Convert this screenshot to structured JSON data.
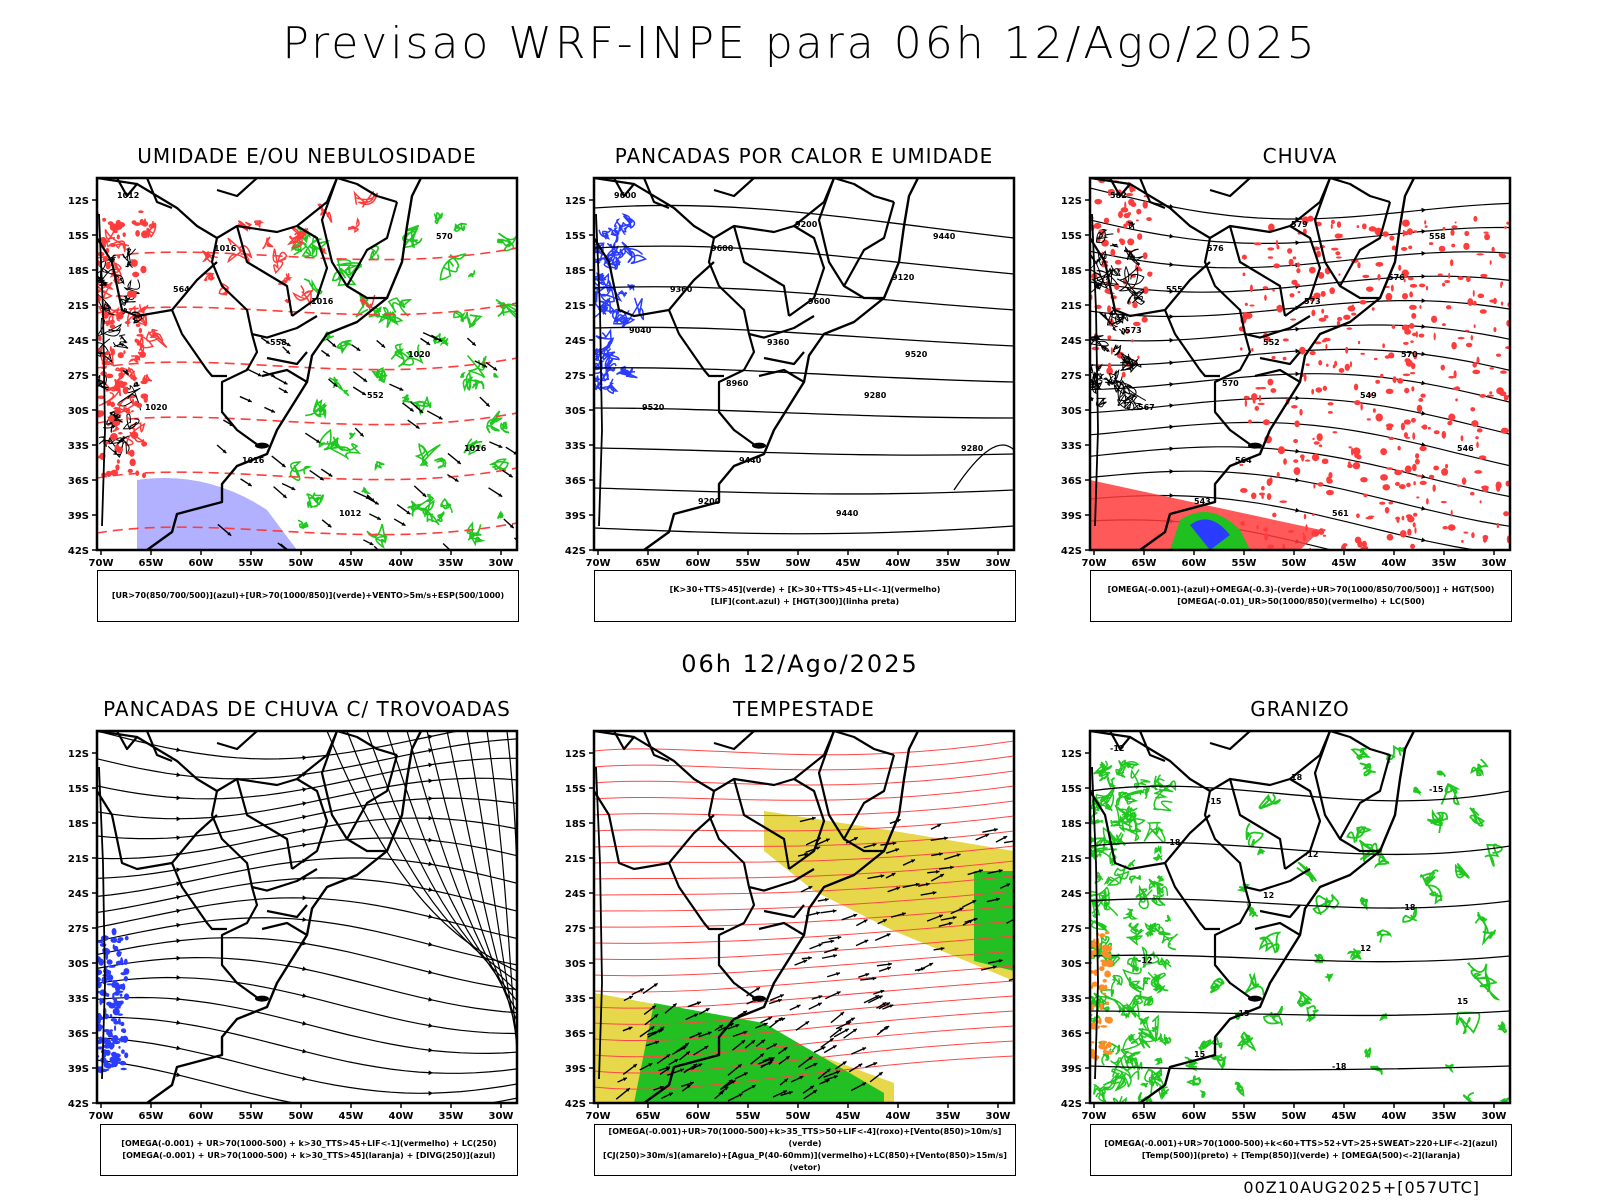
{
  "header": {
    "title": "Previsao WRF-INPE  para 06h 12/Ago/2025"
  },
  "mid_title": "06h 12/Ago/2025",
  "footer": "00Z10AUG2025+[057UTC]",
  "axes": {
    "lat_ticks": [
      "12S",
      "15S",
      "18S",
      "21S",
      "24S",
      "27S",
      "30S",
      "33S",
      "36S",
      "39S",
      "42S"
    ],
    "lon_ticks": [
      "70W",
      "65W",
      "60W",
      "55W",
      "50W",
      "45W",
      "40W",
      "35W",
      "30W"
    ]
  },
  "panels": [
    {
      "title": "UMIDADE E/OU NEBULOSIDADE",
      "legend": [
        "[UR>70(850/700/500)](azul)+[UR>70(1000/850)](verde)+VENTO>5m/s+ESP(500/1000)"
      ],
      "contour_labels": [
        "1012",
        "1016",
        "1016",
        "1020",
        "1020",
        "1016",
        "1012",
        "570",
        "564",
        "558",
        "552",
        "1016"
      ]
    },
    {
      "title": "PANCADAS POR CALOR E UMIDADE",
      "legend": [
        "[K>30+TTS>45](verde) + [K>30+TTS>45+LI<-1](vermelho)",
        "[LIF](cont.azul) + [HGT(300)](linha preta)"
      ],
      "contour_labels": [
        "9600",
        "9600",
        "9600",
        "9520",
        "9520",
        "9440",
        "9440",
        "9440",
        "9360",
        "9360",
        "9280",
        "9280",
        "9200",
        "9200",
        "9120",
        "9040",
        "8960"
      ]
    },
    {
      "title": "CHUVA",
      "legend": [
        "[OMEGA(-0.001)-(azul)+OMEGA(-0.3)-(verde)+UR>70(1000/850/700/500)] + HGT(500)",
        "[OMEGA(-0.01)_UR>50(1000/850)(vermelho) + LC(500)"
      ],
      "contour_labels": [
        "582",
        "576",
        "573",
        "570",
        "567",
        "564",
        "561",
        "558",
        "555",
        "552",
        "549",
        "546",
        "543",
        "579",
        "576",
        "573",
        "570"
      ]
    },
    {
      "title": "PANCADAS DE CHUVA C/ TROVOADAS",
      "legend": [
        "[OMEGA(-0.001) + UR>70(1000-500) + k>30_TTS>45+LIF<-1](vermelho) + LC(250)",
        "[OMEGA(-0.001) + UR>70(1000-500) + k>30_TTS>45](laranja) + [DIVG(250)](azul)"
      ],
      "contour_labels": []
    },
    {
      "title": "TEMPESTADE",
      "legend": [
        "[OMEGA(-0.001)+UR>70(1000-500)+k>35_TTS>50+LIF<-4](roxo)+[Vento(850)>10m/s](verde)",
        "[CJ(250)>30m/s](amarelo)+[Agua_P(40-60mm)](vermelho)+LC(850)+[Vento(850)>15m/s](vetor)"
      ],
      "contour_labels": []
    },
    {
      "title": "GRANIZO",
      "legend": [
        "[OMEGA(-0.001)+UR>70(1000-500)+k<60+TTS>52+VT>25+SWEAT>220+LIF<-2](azul)",
        "[Temp(500)](preto) + [Temp(850)](verde) + [OMEGA(500)<-2](laranja)"
      ],
      "contour_labels": [
        "-12",
        "-15",
        "-12",
        "-18",
        "-12",
        "-15",
        "-18",
        "-15",
        "-18",
        "12",
        "12",
        "15",
        "15",
        "18"
      ]
    }
  ],
  "colors": {
    "map_line": "#000000",
    "humidity_green": "#1ec81e",
    "dashed_red": "#ff3c3c",
    "blue": "#2a3cff",
    "lavender": "#a8a8ff",
    "yellow": "#e6d84a",
    "red_stream": "#ff4646",
    "orange": "#ff8c28"
  }
}
